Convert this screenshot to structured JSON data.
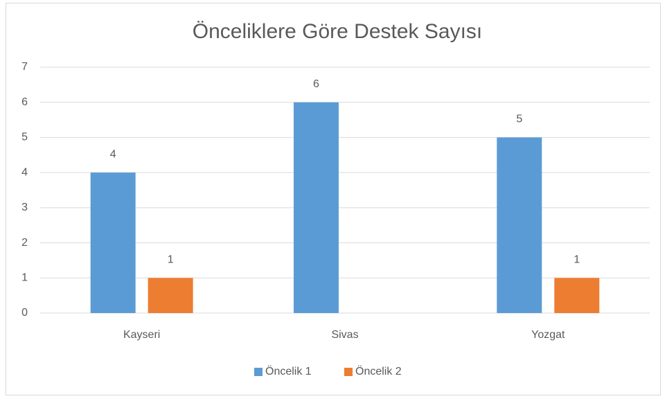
{
  "chart_data": {
    "type": "bar",
    "title": "Önceliklere Göre Destek Sayısı",
    "categories": [
      "Kayseri",
      "Sivas",
      "Yozgat"
    ],
    "series": [
      {
        "name": "Öncelik 1",
        "color": "#5b9bd5",
        "values": [
          4,
          6,
          5
        ]
      },
      {
        "name": "Öncelik 2",
        "color": "#ed7d31",
        "values": [
          1,
          null,
          1
        ]
      }
    ],
    "ylim": [
      0,
      7
    ],
    "yticks": [
      0,
      1,
      2,
      3,
      4,
      5,
      6,
      7
    ],
    "grid": true,
    "legend": "bottom"
  }
}
